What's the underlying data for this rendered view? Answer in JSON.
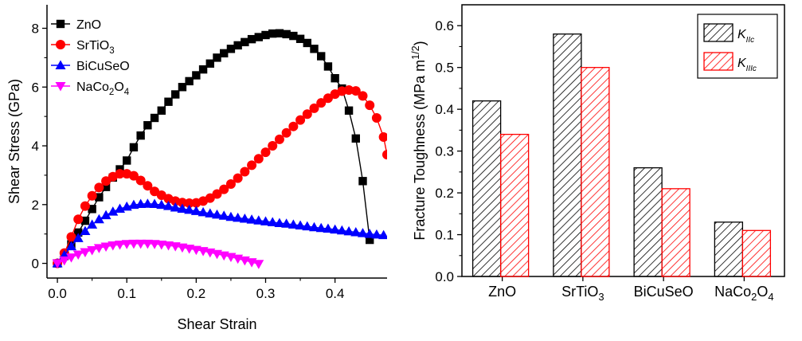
{
  "chart_data": [
    {
      "type": "line",
      "title": "",
      "xlabel": "Shear Strain",
      "ylabel": "Shear Stress (GPa)",
      "xlim": [
        -0.015,
        0.475
      ],
      "ylim": [
        -0.5,
        8.8
      ],
      "x_ticks": [
        "0.0",
        "0.1",
        "0.2",
        "0.3",
        "0.4"
      ],
      "y_ticks": [
        "0",
        "2",
        "4",
        "6",
        "8"
      ],
      "legend_position": "top-left",
      "series": [
        {
          "name": "ZnO",
          "name_parts": {
            "base": "ZnO",
            "sub": "",
            "tail": ""
          },
          "color": "#000000",
          "marker": "square",
          "points": [
            [
              0.0,
              0.0
            ],
            [
              0.01,
              0.25
            ],
            [
              0.02,
              0.65
            ],
            [
              0.03,
              1.05
            ],
            [
              0.04,
              1.45
            ],
            [
              0.05,
              1.85
            ],
            [
              0.06,
              2.25
            ],
            [
              0.07,
              2.6
            ],
            [
              0.08,
              2.92
            ],
            [
              0.09,
              3.2
            ],
            [
              0.1,
              3.5
            ],
            [
              0.11,
              3.95
            ],
            [
              0.12,
              4.35
            ],
            [
              0.13,
              4.7
            ],
            [
              0.14,
              4.95
            ],
            [
              0.15,
              5.2
            ],
            [
              0.16,
              5.5
            ],
            [
              0.17,
              5.75
            ],
            [
              0.18,
              6.0
            ],
            [
              0.19,
              6.2
            ],
            [
              0.2,
              6.4
            ],
            [
              0.21,
              6.6
            ],
            [
              0.22,
              6.8
            ],
            [
              0.23,
              7.0
            ],
            [
              0.24,
              7.15
            ],
            [
              0.25,
              7.3
            ],
            [
              0.26,
              7.42
            ],
            [
              0.27,
              7.53
            ],
            [
              0.28,
              7.63
            ],
            [
              0.29,
              7.7
            ],
            [
              0.3,
              7.77
            ],
            [
              0.31,
              7.82
            ],
            [
              0.32,
              7.83
            ],
            [
              0.33,
              7.8
            ],
            [
              0.34,
              7.74
            ],
            [
              0.35,
              7.64
            ],
            [
              0.36,
              7.5
            ],
            [
              0.37,
              7.3
            ],
            [
              0.38,
              7.05
            ],
            [
              0.39,
              6.7
            ],
            [
              0.4,
              6.3
            ],
            [
              0.41,
              5.95
            ],
            [
              0.42,
              5.2
            ],
            [
              0.43,
              4.25
            ],
            [
              0.44,
              2.8
            ],
            [
              0.45,
              0.8
            ]
          ]
        },
        {
          "name": "SrTiO3",
          "name_parts": {
            "base": "SrTiO",
            "sub": "3",
            "tail": ""
          },
          "color": "#ff0000",
          "marker": "circle",
          "points": [
            [
              0.0,
              0.0
            ],
            [
              0.01,
              0.35
            ],
            [
              0.02,
              0.9
            ],
            [
              0.03,
              1.5
            ],
            [
              0.04,
              1.95
            ],
            [
              0.05,
              2.3
            ],
            [
              0.06,
              2.58
            ],
            [
              0.07,
              2.8
            ],
            [
              0.08,
              2.95
            ],
            [
              0.09,
              3.05
            ],
            [
              0.1,
              3.05
            ],
            [
              0.11,
              2.98
            ],
            [
              0.12,
              2.82
            ],
            [
              0.13,
              2.64
            ],
            [
              0.14,
              2.45
            ],
            [
              0.15,
              2.32
            ],
            [
              0.16,
              2.2
            ],
            [
              0.17,
              2.12
            ],
            [
              0.18,
              2.07
            ],
            [
              0.19,
              2.05
            ],
            [
              0.2,
              2.06
            ],
            [
              0.21,
              2.12
            ],
            [
              0.22,
              2.22
            ],
            [
              0.23,
              2.36
            ],
            [
              0.24,
              2.52
            ],
            [
              0.25,
              2.7
            ],
            [
              0.26,
              2.9
            ],
            [
              0.27,
              3.12
            ],
            [
              0.28,
              3.34
            ],
            [
              0.29,
              3.56
            ],
            [
              0.3,
              3.78
            ],
            [
              0.31,
              4.0
            ],
            [
              0.32,
              4.22
            ],
            [
              0.33,
              4.44
            ],
            [
              0.34,
              4.66
            ],
            [
              0.35,
              4.88
            ],
            [
              0.36,
              5.08
            ],
            [
              0.37,
              5.28
            ],
            [
              0.38,
              5.46
            ],
            [
              0.39,
              5.62
            ],
            [
              0.4,
              5.76
            ],
            [
              0.41,
              5.86
            ],
            [
              0.42,
              5.9
            ],
            [
              0.43,
              5.87
            ],
            [
              0.44,
              5.7
            ],
            [
              0.45,
              5.38
            ],
            [
              0.46,
              4.95
            ],
            [
              0.47,
              4.3
            ],
            [
              0.475,
              3.7
            ]
          ]
        },
        {
          "name": "BiCuSeO",
          "name_parts": {
            "base": "BiCuSeO",
            "sub": "",
            "tail": ""
          },
          "color": "#0000ff",
          "marker": "triangle-up",
          "points": [
            [
              0.0,
              0.0
            ],
            [
              0.01,
              0.28
            ],
            [
              0.02,
              0.58
            ],
            [
              0.03,
              0.86
            ],
            [
              0.04,
              1.1
            ],
            [
              0.05,
              1.32
            ],
            [
              0.06,
              1.5
            ],
            [
              0.07,
              1.64
            ],
            [
              0.08,
              1.76
            ],
            [
              0.09,
              1.86
            ],
            [
              0.1,
              1.93
            ],
            [
              0.11,
              1.99
            ],
            [
              0.12,
              2.02
            ],
            [
              0.13,
              2.03
            ],
            [
              0.14,
              2.02
            ],
            [
              0.15,
              1.99
            ],
            [
              0.16,
              1.95
            ],
            [
              0.17,
              1.9
            ],
            [
              0.18,
              1.86
            ],
            [
              0.19,
              1.82
            ],
            [
              0.2,
              1.78
            ],
            [
              0.21,
              1.74
            ],
            [
              0.22,
              1.7
            ],
            [
              0.23,
              1.66
            ],
            [
              0.24,
              1.62
            ],
            [
              0.25,
              1.58
            ],
            [
              0.26,
              1.55
            ],
            [
              0.27,
              1.52
            ],
            [
              0.28,
              1.49
            ],
            [
              0.29,
              1.46
            ],
            [
              0.3,
              1.43
            ],
            [
              0.31,
              1.4
            ],
            [
              0.32,
              1.37
            ],
            [
              0.33,
              1.35
            ],
            [
              0.34,
              1.32
            ],
            [
              0.35,
              1.29
            ],
            [
              0.36,
              1.26
            ],
            [
              0.37,
              1.23
            ],
            [
              0.38,
              1.2
            ],
            [
              0.39,
              1.18
            ],
            [
              0.4,
              1.15
            ],
            [
              0.41,
              1.12
            ],
            [
              0.42,
              1.09
            ],
            [
              0.43,
              1.06
            ],
            [
              0.44,
              1.03
            ],
            [
              0.45,
              1.0
            ],
            [
              0.46,
              0.98
            ],
            [
              0.47,
              0.96
            ]
          ]
        },
        {
          "name": "NaCo2O4",
          "name_parts": {
            "base": "NaCo",
            "sub": "2",
            "tail": "O",
            "sub2": "4"
          },
          "color": "#ff00ff",
          "marker": "triangle-down",
          "points": [
            [
              0.0,
              0.0
            ],
            [
              0.01,
              0.1
            ],
            [
              0.02,
              0.2
            ],
            [
              0.03,
              0.3
            ],
            [
              0.04,
              0.38
            ],
            [
              0.05,
              0.45
            ],
            [
              0.06,
              0.52
            ],
            [
              0.07,
              0.57
            ],
            [
              0.08,
              0.61
            ],
            [
              0.09,
              0.64
            ],
            [
              0.1,
              0.66
            ],
            [
              0.11,
              0.67
            ],
            [
              0.12,
              0.67
            ],
            [
              0.13,
              0.67
            ],
            [
              0.14,
              0.66
            ],
            [
              0.15,
              0.64
            ],
            [
              0.16,
              0.61
            ],
            [
              0.17,
              0.58
            ],
            [
              0.18,
              0.54
            ],
            [
              0.19,
              0.5
            ],
            [
              0.2,
              0.46
            ],
            [
              0.21,
              0.42
            ],
            [
              0.22,
              0.37
            ],
            [
              0.23,
              0.32
            ],
            [
              0.24,
              0.27
            ],
            [
              0.25,
              0.22
            ],
            [
              0.26,
              0.16
            ],
            [
              0.27,
              0.1
            ],
            [
              0.28,
              0.04
            ],
            [
              0.29,
              -0.02
            ]
          ]
        }
      ]
    },
    {
      "type": "bar",
      "title": "",
      "xlabel": "",
      "ylabel": "Fracture Toughness (MPa m",
      "ylabel_sup": "1/2",
      "ylabel_tail": ")",
      "ylim": [
        0.0,
        0.65
      ],
      "y_ticks": [
        "0.0",
        "0.1",
        "0.2",
        "0.3",
        "0.4",
        "0.5",
        "0.6"
      ],
      "legend_position": "top-right",
      "categories": [
        {
          "base": "ZnO",
          "sub": "",
          "tail": "",
          "sub2": ""
        },
        {
          "base": "SrTiO",
          "sub": "3",
          "tail": "",
          "sub2": ""
        },
        {
          "base": "BiCuSeO",
          "sub": "",
          "tail": "",
          "sub2": ""
        },
        {
          "base": "NaCo",
          "sub": "2",
          "tail": "O",
          "sub2": "4"
        }
      ],
      "series": [
        {
          "name": "KIIc",
          "name_parts": {
            "base": "K",
            "sub": "IIc"
          },
          "color": "#000000",
          "pattern": "hatch",
          "values": [
            0.42,
            0.58,
            0.26,
            0.13
          ]
        },
        {
          "name": "KIIIc",
          "name_parts": {
            "base": "K",
            "sub": "IIIc"
          },
          "color": "#ff0000",
          "pattern": "hatch",
          "values": [
            0.34,
            0.5,
            0.21,
            0.11
          ]
        }
      ]
    }
  ]
}
